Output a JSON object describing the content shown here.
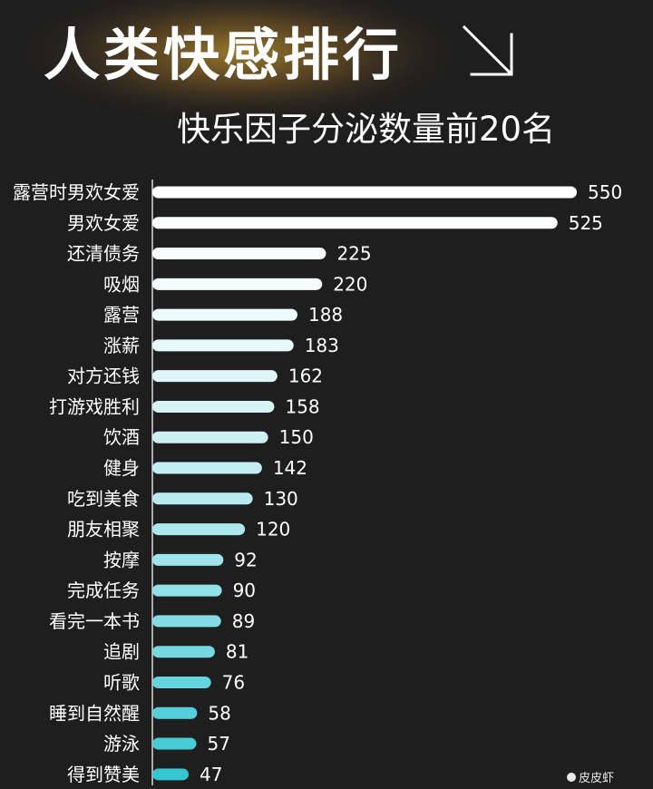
{
  "header": {
    "title": "人类快感排行",
    "subtitle": "快乐因子分泌数量前20名",
    "arrow_icon": "arrow-down-right-icon"
  },
  "watermark": "皮皮虾",
  "colors": {
    "background": "#1e1e1e",
    "bar_top": "#ffffff",
    "bar_bottom": "#35c6d3",
    "text": "#ffffff"
  },
  "chart_data": {
    "type": "bar",
    "orientation": "horizontal",
    "title": "人类快感排行",
    "subtitle": "快乐因子分泌数量前20名",
    "xlabel": "",
    "ylabel": "",
    "grid": false,
    "legend": "none",
    "xlim": [
      0,
      550
    ],
    "categories": [
      "露营时男欢女爱",
      "男欢女爱",
      "还清债务",
      "吸烟",
      "露营",
      "涨薪",
      "对方还钱",
      "打游戏胜利",
      "饮酒",
      "健身",
      "吃到美食",
      "朋友相聚",
      "按摩",
      "完成任务",
      "看完一本书",
      "追剧",
      "听歌",
      "睡到自然醒",
      "游泳",
      "得到赞美"
    ],
    "values": [
      550,
      525,
      225,
      220,
      188,
      183,
      162,
      158,
      150,
      142,
      130,
      120,
      92,
      90,
      89,
      81,
      76,
      58,
      57,
      47
    ]
  }
}
